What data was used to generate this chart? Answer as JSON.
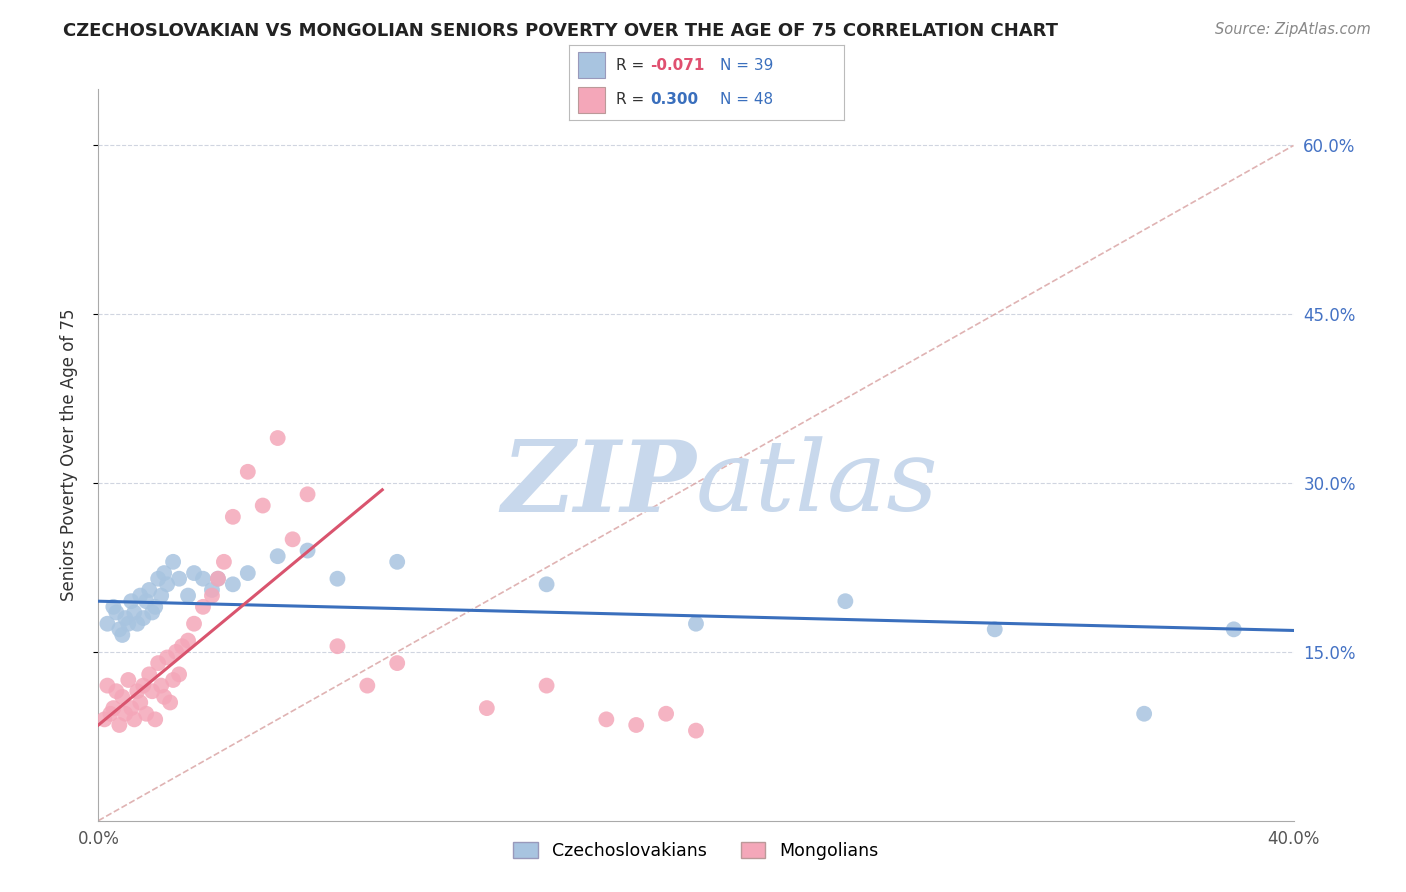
{
  "title": "CZECHOSLOVAKIAN VS MONGOLIAN SENIORS POVERTY OVER THE AGE OF 75 CORRELATION CHART",
  "source": "Source: ZipAtlas.com",
  "ylabel": "Seniors Poverty Over the Age of 75",
  "xlim": [
    0.0,
    0.4
  ],
  "ylim": [
    0.0,
    0.65
  ],
  "xticks": [
    0.0,
    0.1,
    0.2,
    0.3,
    0.4
  ],
  "yticks": [
    0.15,
    0.3,
    0.45,
    0.6
  ],
  "xticklabels": [
    "0.0%",
    "",
    "",
    "",
    "40.0%"
  ],
  "yticklabels_right": [
    "15.0%",
    "30.0%",
    "45.0%",
    "60.0%"
  ],
  "legend_label1": "Czechoslovakians",
  "legend_label2": "Mongolians",
  "blue_color": "#a8c4e0",
  "pink_color": "#f4a7b9",
  "blue_line_color": "#3a6fbd",
  "pink_line_color": "#d9546e",
  "watermark_zip_color": "#c8d8ec",
  "watermark_atlas_color": "#c8d8ec",
  "dashed_line_color": "#d8a0a0",
  "grid_color": "#d0d5e0",
  "czech_x": [
    0.003,
    0.005,
    0.006,
    0.007,
    0.008,
    0.009,
    0.01,
    0.011,
    0.012,
    0.013,
    0.014,
    0.015,
    0.016,
    0.017,
    0.018,
    0.019,
    0.02,
    0.021,
    0.022,
    0.023,
    0.025,
    0.027,
    0.03,
    0.032,
    0.035,
    0.038,
    0.04,
    0.045,
    0.05,
    0.06,
    0.07,
    0.08,
    0.1,
    0.15,
    0.2,
    0.25,
    0.3,
    0.35,
    0.38
  ],
  "czech_y": [
    0.175,
    0.19,
    0.185,
    0.17,
    0.165,
    0.18,
    0.175,
    0.195,
    0.185,
    0.175,
    0.2,
    0.18,
    0.195,
    0.205,
    0.185,
    0.19,
    0.215,
    0.2,
    0.22,
    0.21,
    0.23,
    0.215,
    0.2,
    0.22,
    0.215,
    0.205,
    0.215,
    0.21,
    0.22,
    0.235,
    0.24,
    0.215,
    0.23,
    0.21,
    0.175,
    0.195,
    0.17,
    0.095,
    0.17
  ],
  "mongol_x": [
    0.002,
    0.003,
    0.004,
    0.005,
    0.006,
    0.007,
    0.008,
    0.009,
    0.01,
    0.011,
    0.012,
    0.013,
    0.014,
    0.015,
    0.016,
    0.017,
    0.018,
    0.019,
    0.02,
    0.021,
    0.022,
    0.023,
    0.024,
    0.025,
    0.026,
    0.027,
    0.028,
    0.03,
    0.032,
    0.035,
    0.038,
    0.04,
    0.042,
    0.045,
    0.05,
    0.055,
    0.06,
    0.065,
    0.07,
    0.08,
    0.09,
    0.1,
    0.13,
    0.15,
    0.17,
    0.18,
    0.19,
    0.2
  ],
  "mongol_y": [
    0.09,
    0.12,
    0.095,
    0.1,
    0.115,
    0.085,
    0.11,
    0.095,
    0.125,
    0.1,
    0.09,
    0.115,
    0.105,
    0.12,
    0.095,
    0.13,
    0.115,
    0.09,
    0.14,
    0.12,
    0.11,
    0.145,
    0.105,
    0.125,
    0.15,
    0.13,
    0.155,
    0.16,
    0.175,
    0.19,
    0.2,
    0.215,
    0.23,
    0.27,
    0.31,
    0.28,
    0.34,
    0.25,
    0.29,
    0.155,
    0.12,
    0.14,
    0.1,
    0.12,
    0.09,
    0.085,
    0.095,
    0.08
  ],
  "blue_intercept": 0.195,
  "blue_slope": -0.065,
  "pink_intercept": 0.085,
  "pink_slope": 2.2,
  "pink_line_xmax": 0.095
}
